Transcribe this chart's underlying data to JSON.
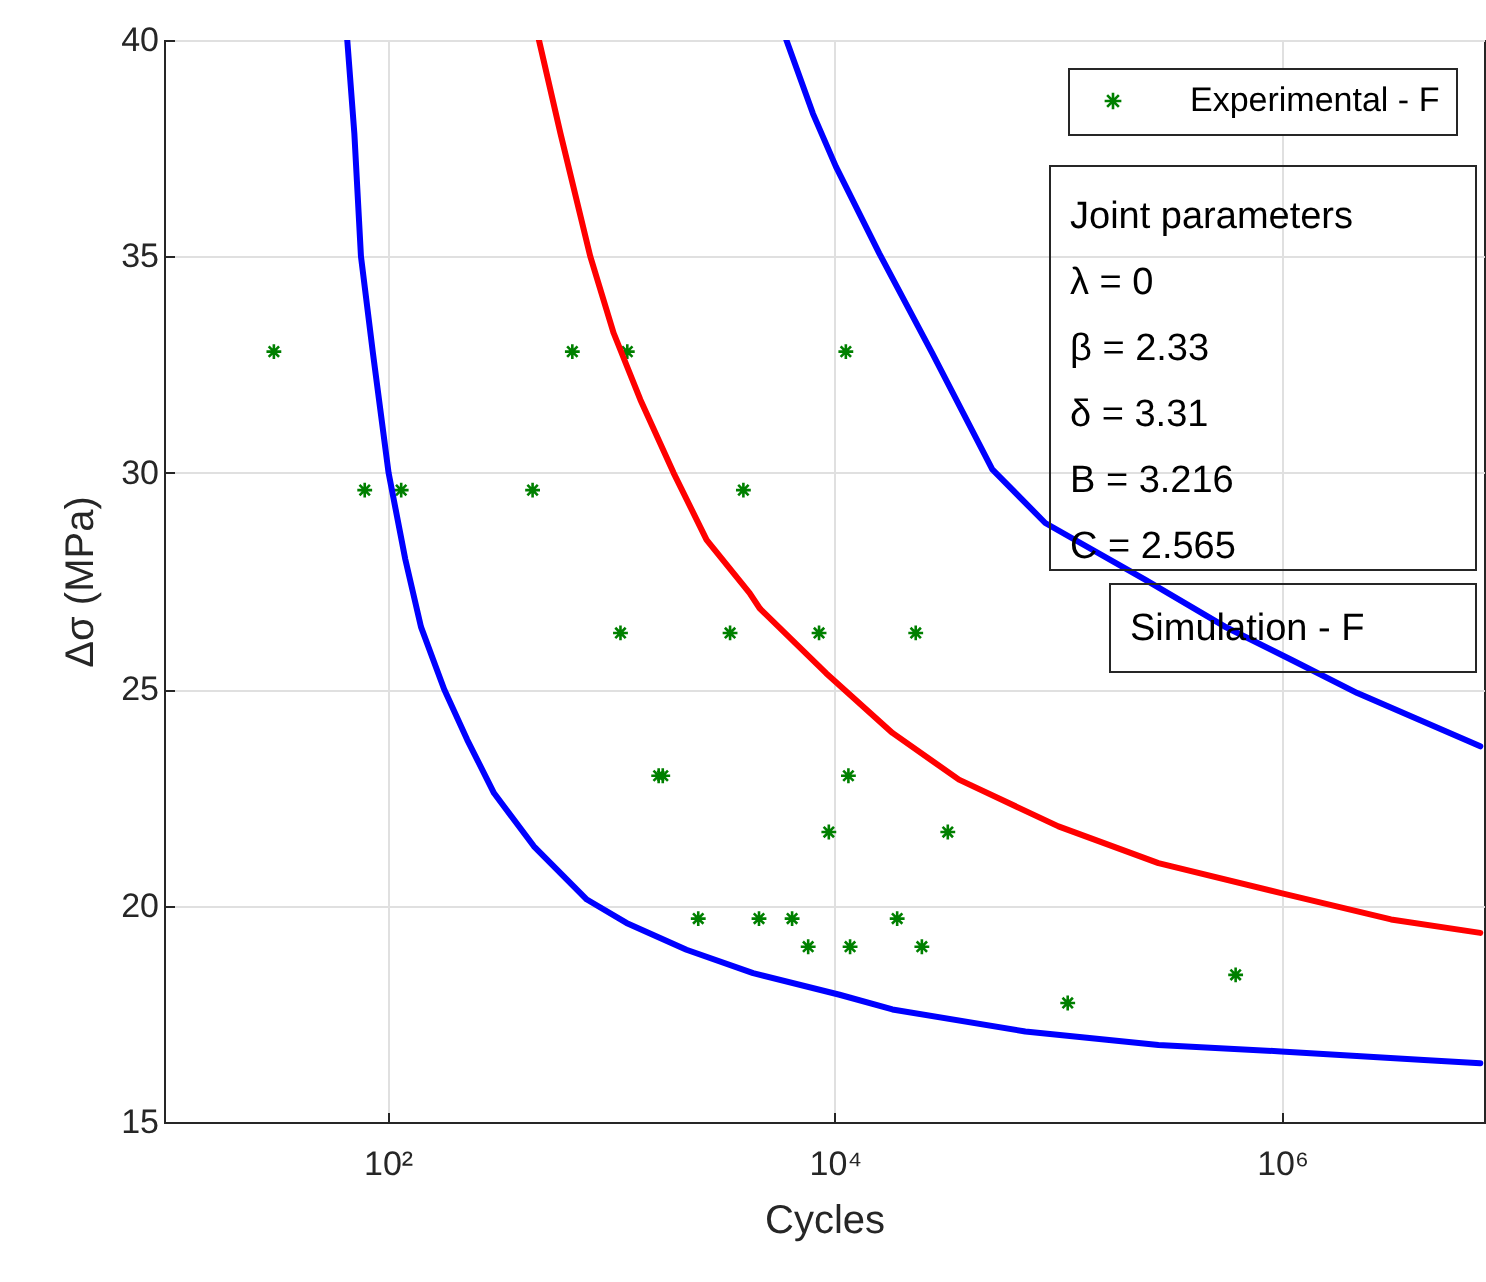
{
  "chart_data": {
    "type": "scatter",
    "xlabel": "Cycles",
    "ylabel": "Δσ (MPa)",
    "xlim": [
      10,
      8000000
    ],
    "ylim": [
      15,
      40
    ],
    "xticks": [
      {
        "value": 100,
        "label": "10²"
      },
      {
        "value": 10000,
        "label": "10⁴"
      },
      {
        "value": 1000000,
        "label": "10⁶"
      }
    ],
    "yticks": [
      15,
      20,
      25,
      30,
      35,
      40
    ],
    "log": "x",
    "grid": true,
    "legend": "top right",
    "annotations": [
      "Joint parameters",
      "λ = 0",
      "β = 2.33",
      "δ = 3.31",
      "B = 3.216",
      "C = 2.565",
      "Simulation - F"
    ],
    "series": [
      {
        "name": "Experimental - F",
        "marker": "cross",
        "color": "#008000",
        "x": [
          31,
          79,
          115,
          445,
          670,
          1180,
          3900,
          11200,
          1100,
          3400,
          8500,
          23000,
          1630,
          1700,
          11500,
          9400,
          32000,
          2450,
          4580,
          6440,
          19000,
          7600,
          11700,
          24500,
          110000,
          620000
        ],
        "values": [
          32.8,
          29.6,
          29.6,
          29.6,
          32.8,
          32.8,
          29.6,
          32.8,
          26.3,
          26.3,
          26.3,
          26.3,
          23.0,
          23.0,
          23.0,
          21.7,
          21.7,
          19.7,
          19.7,
          19.7,
          19.7,
          19.05,
          19.05,
          19.05,
          17.75,
          18.4
        ]
      },
      {
        "type": "line",
        "color": "#0000ff",
        "line_style": "solid",
        "x": [
          66,
          71,
          76,
          86,
          101,
          120,
          141,
          179,
          227,
          299,
          451,
          778,
          1170,
          2170,
          4310,
          10500,
          18100,
          71100,
          280000,
          991000,
          4310000,
          7700000
        ],
        "values": [
          40,
          37.84,
          35.0,
          32.76,
          30.0,
          28.0,
          26.44,
          25.0,
          23.83,
          22.6,
          21.37,
          20.14,
          19.6,
          18.98,
          18.44,
          17.94,
          17.6,
          17.09,
          16.78,
          16.63,
          16.43,
          16.36
        ]
      },
      {
        "type": "line",
        "color": "#ff0000",
        "line_style": "solid",
        "x": [
          475,
          593,
          806,
          1025,
          1350,
          1900,
          2670,
          4160,
          4610,
          9140,
          18100,
          35900,
          100000,
          280000,
          991000,
          3070000,
          7700000
        ],
        "values": [
          40,
          37.84,
          35.0,
          33.23,
          31.69,
          30.0,
          28.45,
          27.22,
          26.87,
          25.37,
          23.99,
          22.91,
          21.83,
          20.98,
          20.29,
          19.68,
          19.37
        ]
      },
      {
        "type": "line",
        "color": "#0000ff",
        "line_style": "solid",
        "x": [
          6070,
          7980,
          10100,
          15800,
          27300,
          50600,
          87300,
          244000,
          553000,
          1100000,
          2170000,
          7700000
        ],
        "values": [
          40,
          38.3,
          37.08,
          35.07,
          32.76,
          30.08,
          28.84,
          27.53,
          26.45,
          25.68,
          24.91,
          23.68
        ]
      }
    ]
  }
}
